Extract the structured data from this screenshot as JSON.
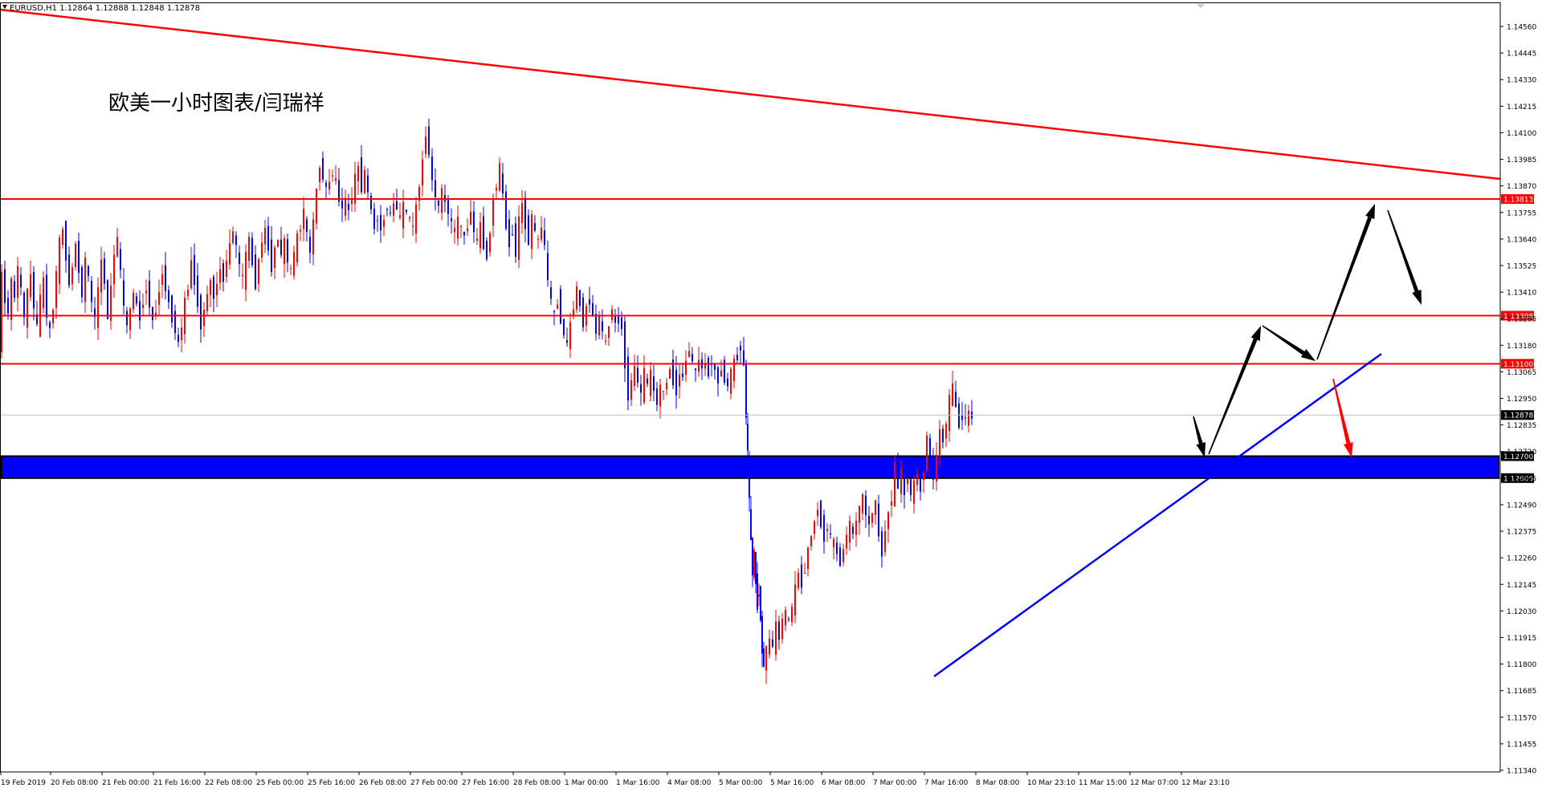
{
  "chart_data": {
    "type": "candlestick",
    "symbol_header": "EURUSD,H1  1.12864 1.12888 1.12848 1.12878",
    "annotation": "欧美一小时图表/闫瑞祥",
    "ylim": [
      1.1134,
      1.1464
    ],
    "y_ticks": [
      "1.14560",
      "1.14445",
      "1.14330",
      "1.14215",
      "1.14100",
      "1.13985",
      "1.13870",
      "1.13755",
      "1.13640",
      "1.13525",
      "1.13410",
      "1.13295",
      "1.13180",
      "1.13065",
      "1.12950",
      "1.12835",
      "1.12720",
      "1.12605",
      "1.12490",
      "1.12375",
      "1.12260",
      "1.12145",
      "1.12030",
      "1.11915",
      "1.11800",
      "1.11685",
      "1.11570",
      "1.11455",
      "1.11340"
    ],
    "x_ticks": [
      "19 Feb 2019",
      "20 Feb 08:00",
      "21 Feb 00:00",
      "21 Feb 16:00",
      "22 Feb 08:00",
      "25 Feb 00:00",
      "25 Feb 16:00",
      "26 Feb 08:00",
      "27 Feb 00:00",
      "27 Feb 16:00",
      "28 Feb 08:00",
      "1 Mar 00:00",
      "1 Mar 16:00",
      "4 Mar 08:00",
      "5 Mar 00:00",
      "5 Mar 16:00",
      "6 Mar 08:00",
      "7 Mar 00:00",
      "7 Mar 16:00",
      "8 Mar 08:00",
      "10 Mar 23:10",
      "11 Mar 15:00",
      "12 Mar 07:00",
      "12 Mar 23:10"
    ],
    "horizontal_levels": [
      {
        "label": "1.13813",
        "value": 1.13813,
        "color": "#ff0000"
      },
      {
        "label": "1.13308",
        "value": 1.13308,
        "color": "#ff0000"
      },
      {
        "label": "1.13100",
        "value": 1.131,
        "color": "#ff0000"
      }
    ],
    "current_price": {
      "label": "1.12878",
      "value": 1.12878
    },
    "zone": {
      "upper_label": "1.12700",
      "upper": 1.127,
      "lower_label": "1.12605",
      "lower": 1.12605,
      "color": "#0000ff"
    },
    "trendlines": [
      {
        "color": "#ff0000",
        "from": {
          "x": "19 Feb 2019",
          "y": 1.146
        },
        "to": {
          "x": "13 Mar",
          "y": 1.139
        }
      },
      {
        "color": "#0000ff",
        "from": {
          "x": "7 Mar 16:00",
          "y": 1.1175
        },
        "to": {
          "x": "13 Mar",
          "y": 1.1315
        }
      }
    ],
    "up_color": "#ff0000",
    "down_color": "#0000ff",
    "bullet_lines": [
      [
        0,
        1.1318
      ],
      [
        4,
        1.1348
      ],
      [
        8,
        1.1338
      ],
      [
        12,
        1.1332
      ],
      [
        16,
        1.1345
      ],
      [
        20,
        1.1339
      ],
      [
        24,
        1.1352
      ],
      [
        28,
        1.1341
      ],
      [
        32,
        1.133
      ],
      [
        36,
        1.134
      ],
      [
        40,
        1.1348
      ],
      [
        44,
        1.1335
      ],
      [
        48,
        1.1325
      ],
      [
        52,
        1.1338
      ],
      [
        56,
        1.1345
      ],
      [
        60,
        1.1332
      ],
      [
        64,
        1.1323
      ],
      [
        68,
        1.1336
      ],
      [
        72,
        1.1349
      ],
      [
        76,
        1.1362
      ],
      [
        80,
        1.1368
      ],
      [
        84,
        1.1357
      ],
      [
        88,
        1.1344
      ],
      [
        92,
        1.1352
      ],
      [
        96,
        1.1362
      ],
      [
        100,
        1.135
      ],
      [
        104,
        1.134
      ],
      [
        108,
        1.1354
      ],
      [
        112,
        1.1347
      ],
      [
        116,
        1.1336
      ],
      [
        120,
        1.1329
      ],
      [
        124,
        1.1341
      ],
      [
        128,
        1.1355
      ],
      [
        132,
        1.1345
      ],
      [
        136,
        1.133
      ],
      [
        140,
        1.1343
      ],
      [
        144,
        1.1358
      ],
      [
        148,
        1.1364
      ],
      [
        152,
        1.1348
      ],
      [
        156,
        1.1334
      ],
      [
        160,
        1.1326
      ],
      [
        164,
        1.1333
      ],
      [
        168,
        1.1341
      ],
      [
        172,
        1.1335
      ],
      [
        176,
        1.133
      ],
      [
        180,
        1.1338
      ],
      [
        184,
        1.1343
      ],
      [
        188,
        1.1336
      ],
      [
        192,
        1.1328
      ],
      [
        196,
        1.1334
      ],
      [
        200,
        1.1342
      ],
      [
        204,
        1.135
      ],
      [
        208,
        1.1343
      ],
      [
        212,
        1.1336
      ],
      [
        216,
        1.133
      ],
      [
        220,
        1.1325
      ],
      [
        224,
        1.1318
      ],
      [
        228,
        1.1327
      ],
      [
        232,
        1.1336
      ],
      [
        236,
        1.1344
      ],
      [
        240,
        1.1354
      ],
      [
        244,
        1.1346
      ],
      [
        248,
        1.1336
      ],
      [
        252,
        1.1327
      ],
      [
        256,
        1.1333
      ],
      [
        260,
        1.134
      ],
      [
        264,
        1.1346
      ],
      [
        268,
        1.1339
      ],
      [
        272,
        1.1345
      ],
      [
        276,
        1.1351
      ],
      [
        280,
        1.1347
      ],
      [
        284,
        1.1355
      ],
      [
        288,
        1.1361
      ],
      [
        292,
        1.1368
      ],
      [
        296,
        1.136
      ],
      [
        300,
        1.1352
      ],
      [
        304,
        1.1346
      ],
      [
        308,
        1.1356
      ],
      [
        312,
        1.1364
      ],
      [
        316,
        1.1353
      ],
      [
        320,
        1.1345
      ],
      [
        324,
        1.1355
      ],
      [
        328,
        1.1363
      ],
      [
        332,
        1.1368
      ],
      [
        336,
        1.136
      ],
      [
        340,
        1.1352
      ],
      [
        344,
        1.136
      ],
      [
        348,
        1.1364
      ],
      [
        352,
        1.1357
      ],
      [
        356,
        1.1362
      ],
      [
        360,
        1.1355
      ],
      [
        364,
        1.1349
      ],
      [
        368,
        1.1358
      ],
      [
        372,
        1.1364
      ],
      [
        376,
        1.137
      ],
      [
        380,
        1.1376
      ],
      [
        384,
        1.1365
      ],
      [
        388,
        1.1358
      ],
      [
        392,
        1.1372
      ],
      [
        396,
        1.1385
      ],
      [
        400,
        1.1397
      ],
      [
        404,
        1.1391
      ],
      [
        408,
        1.1385
      ],
      [
        412,
        1.1389
      ],
      [
        416,
        1.1393
      ],
      [
        420,
        1.1388
      ],
      [
        424,
        1.1381
      ],
      [
        428,
        1.1377
      ],
      [
        432,
        1.138
      ],
      [
        436,
        1.1376
      ],
      [
        440,
        1.1383
      ],
      [
        444,
        1.139
      ],
      [
        448,
        1.1395
      ],
      [
        452,
        1.1387
      ],
      [
        456,
        1.1392
      ],
      [
        460,
        1.1384
      ],
      [
        464,
        1.1376
      ],
      [
        468,
        1.1369
      ],
      [
        472,
        1.1374
      ],
      [
        476,
        1.1368
      ],
      [
        480,
        1.1373
      ],
      [
        484,
        1.1379
      ],
      [
        488,
        1.1373
      ],
      [
        492,
        1.138
      ],
      [
        496,
        1.1377
      ],
      [
        500,
        1.1372
      ],
      [
        504,
        1.1378
      ],
      [
        508,
        1.1375
      ],
      [
        512,
        1.1372
      ],
      [
        516,
        1.1368
      ],
      [
        520,
        1.1378
      ],
      [
        524,
        1.1388
      ],
      [
        528,
        1.1398
      ],
      [
        532,
        1.141
      ],
      [
        536,
        1.1402
      ],
      [
        540,
        1.1388
      ],
      [
        544,
        1.1383
      ],
      [
        548,
        1.1377
      ],
      [
        552,
        1.1385
      ],
      [
        556,
        1.1379
      ],
      [
        560,
        1.1376
      ],
      [
        564,
        1.137
      ],
      [
        568,
        1.1367
      ],
      [
        572,
        1.1372
      ],
      [
        576,
        1.1368
      ],
      [
        580,
        1.1365
      ],
      [
        584,
        1.137
      ],
      [
        588,
        1.1376
      ],
      [
        592,
        1.1367
      ],
      [
        596,
        1.1362
      ],
      [
        600,
        1.137
      ],
      [
        604,
        1.1362
      ],
      [
        608,
        1.1356
      ],
      [
        612,
        1.1368
      ],
      [
        616,
        1.1382
      ],
      [
        620,
        1.1388
      ],
      [
        624,
        1.1395
      ],
      [
        628,
        1.1382
      ],
      [
        632,
        1.137
      ],
      [
        636,
        1.1362
      ],
      [
        640,
        1.1368
      ],
      [
        644,
        1.1358
      ],
      [
        648,
        1.1372
      ],
      [
        652,
        1.1379
      ],
      [
        656,
        1.137
      ],
      [
        660,
        1.1364
      ],
      [
        664,
        1.1372
      ],
      [
        668,
        1.1367
      ],
      [
        672,
        1.1362
      ],
      [
        676,
        1.137
      ],
      [
        680,
        1.136
      ],
      [
        684,
        1.1345
      ],
      [
        688,
        1.1337
      ],
      [
        692,
        1.133
      ],
      [
        696,
        1.1338
      ],
      [
        700,
        1.133
      ],
      [
        704,
        1.1322
      ],
      [
        708,
        1.1318
      ],
      [
        712,
        1.1327
      ],
      [
        716,
        1.1336
      ],
      [
        720,
        1.1342
      ],
      [
        724,
        1.1335
      ],
      [
        728,
        1.1328
      ],
      [
        732,
        1.1334
      ],
      [
        736,
        1.1338
      ],
      [
        740,
        1.133
      ],
      [
        744,
        1.1324
      ],
      [
        748,
        1.133
      ],
      [
        752,
        1.1323
      ],
      [
        756,
        1.1318
      ],
      [
        760,
        1.1328
      ],
      [
        764,
        1.1334
      ],
      [
        768,
        1.1326
      ],
      [
        772,
        1.133
      ],
      [
        776,
        1.1325
      ],
      [
        780,
        1.131
      ],
      [
        784,
        1.1296
      ],
      [
        788,
        1.1302
      ],
      [
        792,
        1.1308
      ],
      [
        796,
        1.1302
      ],
      [
        800,
        1.1297
      ],
      [
        804,
        1.1306
      ],
      [
        808,
        1.13
      ],
      [
        812,
        1.1305
      ],
      [
        816,
        1.1298
      ],
      [
        820,
        1.1293
      ],
      [
        824,
        1.13
      ],
      [
        828,
        1.1297
      ],
      [
        832,
        1.1303
      ],
      [
        836,
        1.1308
      ],
      [
        840,
        1.1303
      ],
      [
        844,
        1.1299
      ],
      [
        848,
        1.1306
      ],
      [
        852,
        1.1304
      ],
      [
        856,
        1.1312
      ],
      [
        860,
        1.1316
      ],
      [
        864,
        1.131
      ],
      [
        868,
        1.1306
      ],
      [
        872,
        1.1312
      ],
      [
        876,
        1.1308
      ],
      [
        880,
        1.131
      ],
      [
        884,
        1.1306
      ],
      [
        888,
        1.1312
      ],
      [
        892,
        1.1306
      ],
      [
        896,
        1.1303
      ],
      [
        900,
        1.1308
      ],
      [
        904,
        1.1304
      ],
      [
        908,
        1.13
      ],
      [
        912,
        1.1306
      ],
      [
        916,
        1.131
      ],
      [
        920,
        1.1314
      ],
      [
        924,
        1.1318
      ],
      [
        928,
        1.1308
      ],
      [
        930,
        1.1288
      ],
      [
        932,
        1.127
      ],
      [
        934,
        1.125
      ],
      [
        936,
        1.1232
      ],
      [
        938,
        1.122
      ],
      [
        940,
        1.1228
      ],
      [
        942,
        1.1215
      ],
      [
        944,
        1.1206
      ],
      [
        946,
        1.1212
      ],
      [
        948,
        1.12
      ],
      [
        950,
        1.1185
      ],
      [
        952,
        1.118
      ],
      [
        956,
        1.1186
      ],
      [
        960,
        1.119
      ],
      [
        964,
        1.1188
      ],
      [
        968,
        1.1196
      ],
      [
        972,
        1.1192
      ],
      [
        976,
        1.1199
      ],
      [
        980,
        1.1202
      ],
      [
        984,
        1.1198
      ],
      [
        988,
        1.1205
      ],
      [
        992,
        1.1212
      ],
      [
        996,
        1.122
      ],
      [
        1000,
        1.1215
      ],
      [
        1004,
        1.1222
      ],
      [
        1008,
        1.123
      ],
      [
        1012,
        1.1236
      ],
      [
        1016,
        1.1242
      ],
      [
        1020,
        1.1248
      ],
      [
        1024,
        1.1241
      ],
      [
        1028,
        1.1235
      ],
      [
        1032,
        1.124
      ],
      [
        1036,
        1.1234
      ],
      [
        1040,
        1.1232
      ],
      [
        1044,
        1.1228
      ],
      [
        1048,
        1.1224
      ],
      [
        1052,
        1.123
      ],
      [
        1056,
        1.1236
      ],
      [
        1060,
        1.124
      ],
      [
        1064,
        1.1236
      ],
      [
        1068,
        1.1242
      ],
      [
        1072,
        1.1248
      ],
      [
        1076,
        1.1252
      ],
      [
        1080,
        1.1245
      ],
      [
        1084,
        1.124
      ],
      [
        1088,
        1.1246
      ],
      [
        1092,
        1.125
      ],
      [
        1096,
        1.1235
      ],
      [
        1100,
        1.1228
      ],
      [
        1104,
        1.1238
      ],
      [
        1108,
        1.1246
      ],
      [
        1112,
        1.1252
      ],
      [
        1116,
        1.1265
      ],
      [
        1120,
        1.1258
      ],
      [
        1124,
        1.1262
      ],
      [
        1128,
        1.1255
      ],
      [
        1132,
        1.1262
      ],
      [
        1136,
        1.1252
      ],
      [
        1140,
        1.1258
      ],
      [
        1144,
        1.1262
      ],
      [
        1148,
        1.1256
      ],
      [
        1152,
        1.1265
      ],
      [
        1156,
        1.1278
      ],
      [
        1160,
        1.127
      ],
      [
        1164,
        1.126
      ],
      [
        1168,
        1.127
      ],
      [
        1172,
        1.1282
      ],
      [
        1176,
        1.1276
      ],
      [
        1180,
        1.1285
      ],
      [
        1184,
        1.1294
      ],
      [
        1188,
        1.13
      ],
      [
        1192,
        1.129
      ],
      [
        1196,
        1.1284
      ],
      [
        1200,
        1.1288
      ],
      [
        1204,
        1.1286
      ],
      [
        1208,
        1.1288
      ],
      [
        1212,
        1.1287
      ]
    ],
    "projection_arrows": [
      {
        "color": "#000000",
        "points": [
          [
            1212,
            1.12878
          ],
          [
            1228,
            1.1274
          ]
        ]
      },
      {
        "color": "#000000",
        "points": [
          [
            1228,
            1.1274
          ],
          [
            1280,
            1.133
          ]
        ]
      },
      {
        "color": "#000000",
        "points": [
          [
            1284,
            1.1332
          ],
          [
            1335,
            1.131
          ]
        ]
      },
      {
        "color": "#000000",
        "points": [
          [
            1340,
            1.1312
          ],
          [
            1398,
            1.1381
          ]
        ]
      },
      {
        "color": "#000000",
        "points": [
          [
            1408,
            1.1381
          ],
          [
            1445,
            1.1346
          ]
        ]
      },
      {
        "color": "#ff0000",
        "points": [
          [
            1355,
            1.13
          ],
          [
            1372,
            1.1271
          ]
        ]
      }
    ]
  }
}
